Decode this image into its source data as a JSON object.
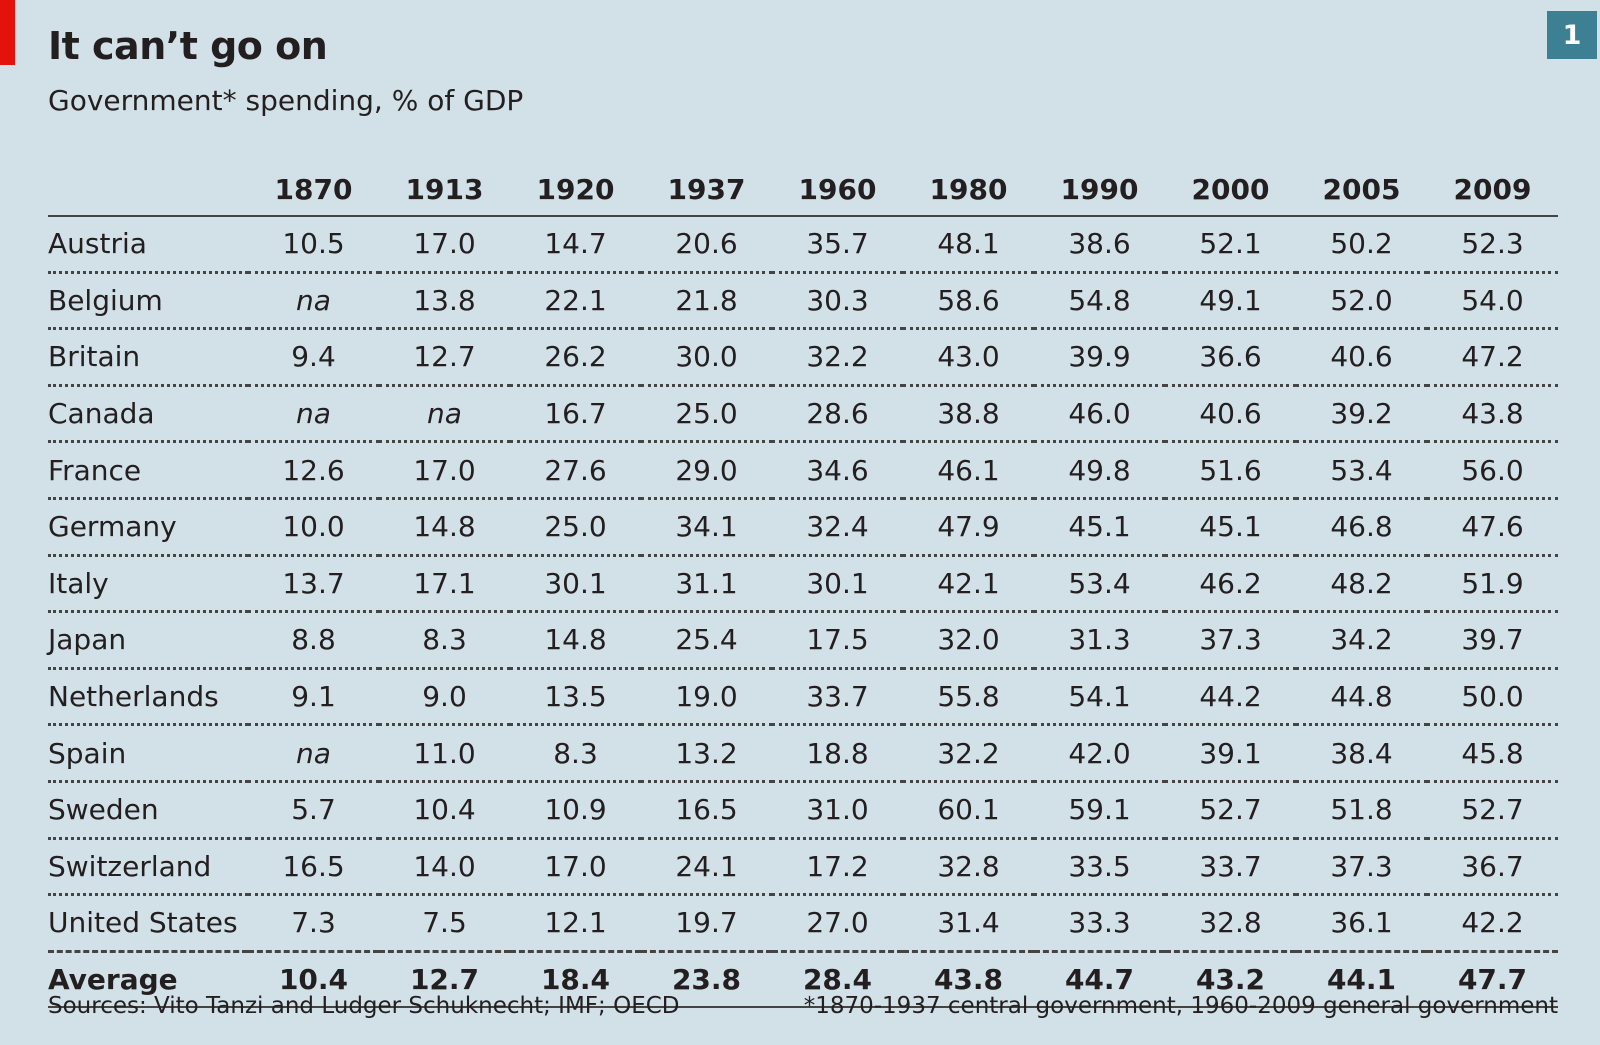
{
  "badge": "1",
  "chart_data": {
    "type": "table",
    "title": "It can’t go on",
    "subtitle": "Government* spending, % of GDP",
    "columns": [
      "1870",
      "1913",
      "1920",
      "1937",
      "1960",
      "1980",
      "1990",
      "2000",
      "2005",
      "2009"
    ],
    "rows": [
      {
        "name": "Austria",
        "values": [
          "10.5",
          "17.0",
          "14.7",
          "20.6",
          "35.7",
          "48.1",
          "38.6",
          "52.1",
          "50.2",
          "52.3"
        ]
      },
      {
        "name": "Belgium",
        "values": [
          "na",
          "13.8",
          "22.1",
          "21.8",
          "30.3",
          "58.6",
          "54.8",
          "49.1",
          "52.0",
          "54.0"
        ]
      },
      {
        "name": "Britain",
        "values": [
          "9.4",
          "12.7",
          "26.2",
          "30.0",
          "32.2",
          "43.0",
          "39.9",
          "36.6",
          "40.6",
          "47.2"
        ]
      },
      {
        "name": "Canada",
        "values": [
          "na",
          "na",
          "16.7",
          "25.0",
          "28.6",
          "38.8",
          "46.0",
          "40.6",
          "39.2",
          "43.8"
        ]
      },
      {
        "name": "France",
        "values": [
          "12.6",
          "17.0",
          "27.6",
          "29.0",
          "34.6",
          "46.1",
          "49.8",
          "51.6",
          "53.4",
          "56.0"
        ]
      },
      {
        "name": "Germany",
        "values": [
          "10.0",
          "14.8",
          "25.0",
          "34.1",
          "32.4",
          "47.9",
          "45.1",
          "45.1",
          "46.8",
          "47.6"
        ]
      },
      {
        "name": "Italy",
        "values": [
          "13.7",
          "17.1",
          "30.1",
          "31.1",
          "30.1",
          "42.1",
          "53.4",
          "46.2",
          "48.2",
          "51.9"
        ]
      },
      {
        "name": "Japan",
        "values": [
          "8.8",
          "8.3",
          "14.8",
          "25.4",
          "17.5",
          "32.0",
          "31.3",
          "37.3",
          "34.2",
          "39.7"
        ]
      },
      {
        "name": "Netherlands",
        "values": [
          "9.1",
          "9.0",
          "13.5",
          "19.0",
          "33.7",
          "55.8",
          "54.1",
          "44.2",
          "44.8",
          "50.0"
        ]
      },
      {
        "name": "Spain",
        "values": [
          "na",
          "11.0",
          "8.3",
          "13.2",
          "18.8",
          "32.2",
          "42.0",
          "39.1",
          "38.4",
          "45.8"
        ]
      },
      {
        "name": "Sweden",
        "values": [
          "5.7",
          "10.4",
          "10.9",
          "16.5",
          "31.0",
          "60.1",
          "59.1",
          "52.7",
          "51.8",
          "52.7"
        ]
      },
      {
        "name": "Switzerland",
        "values": [
          "16.5",
          "14.0",
          "17.0",
          "24.1",
          "17.2",
          "32.8",
          "33.5",
          "33.7",
          "37.3",
          "36.7"
        ]
      },
      {
        "name": "United States",
        "values": [
          "7.3",
          "7.5",
          "12.1",
          "19.7",
          "27.0",
          "31.4",
          "33.3",
          "32.8",
          "36.1",
          "42.2"
        ]
      }
    ],
    "average": {
      "name": "Average",
      "values": [
        "10.4",
        "12.7",
        "18.4",
        "23.8",
        "28.4",
        "43.8",
        "44.7",
        "43.2",
        "44.1",
        "47.7"
      ]
    },
    "source": "Sources: Vito Tanzi and Ludger Schuknecht; IMF; OECD",
    "footnote": "*1870-1937 central government, 1960-2009 general government"
  }
}
